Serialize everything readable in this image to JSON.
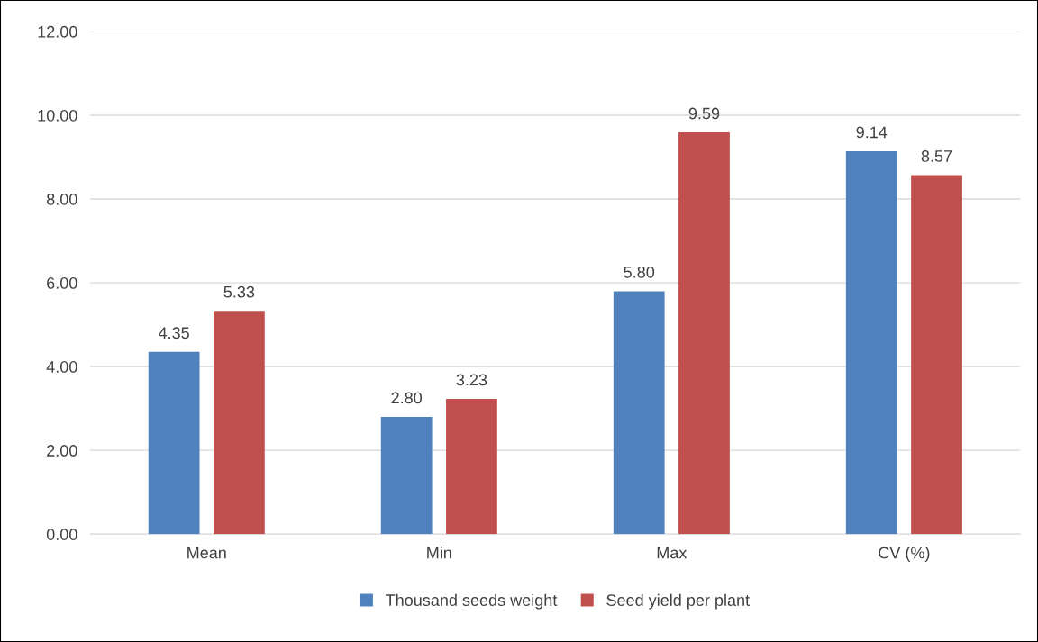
{
  "chart_data": {
    "type": "bar",
    "categories": [
      "Mean",
      "Min",
      "Max",
      "CV (%)"
    ],
    "series": [
      {
        "name": "Thousand seeds weight",
        "color": "#4f81bd",
        "values": [
          4.35,
          2.8,
          5.8,
          9.14
        ],
        "value_labels": [
          "4.35",
          "2.80",
          "5.80",
          "9.14"
        ]
      },
      {
        "name": "Seed yield per plant",
        "color": "#c0504d",
        "values": [
          5.33,
          3.23,
          9.59,
          8.57
        ],
        "value_labels": [
          "5.33",
          "3.23",
          "9.59",
          "8.57"
        ]
      }
    ],
    "ylim": [
      0,
      12
    ],
    "yticks": [
      {
        "value": 0,
        "label": "0.00"
      },
      {
        "value": 2,
        "label": "2.00"
      },
      {
        "value": 4,
        "label": "4.00"
      },
      {
        "value": 6,
        "label": "6.00"
      },
      {
        "value": 8,
        "label": "8.00"
      },
      {
        "value": 10,
        "label": "10.00"
      },
      {
        "value": 12,
        "label": "12.00"
      }
    ],
    "grid": "y",
    "legend": "bottom"
  }
}
